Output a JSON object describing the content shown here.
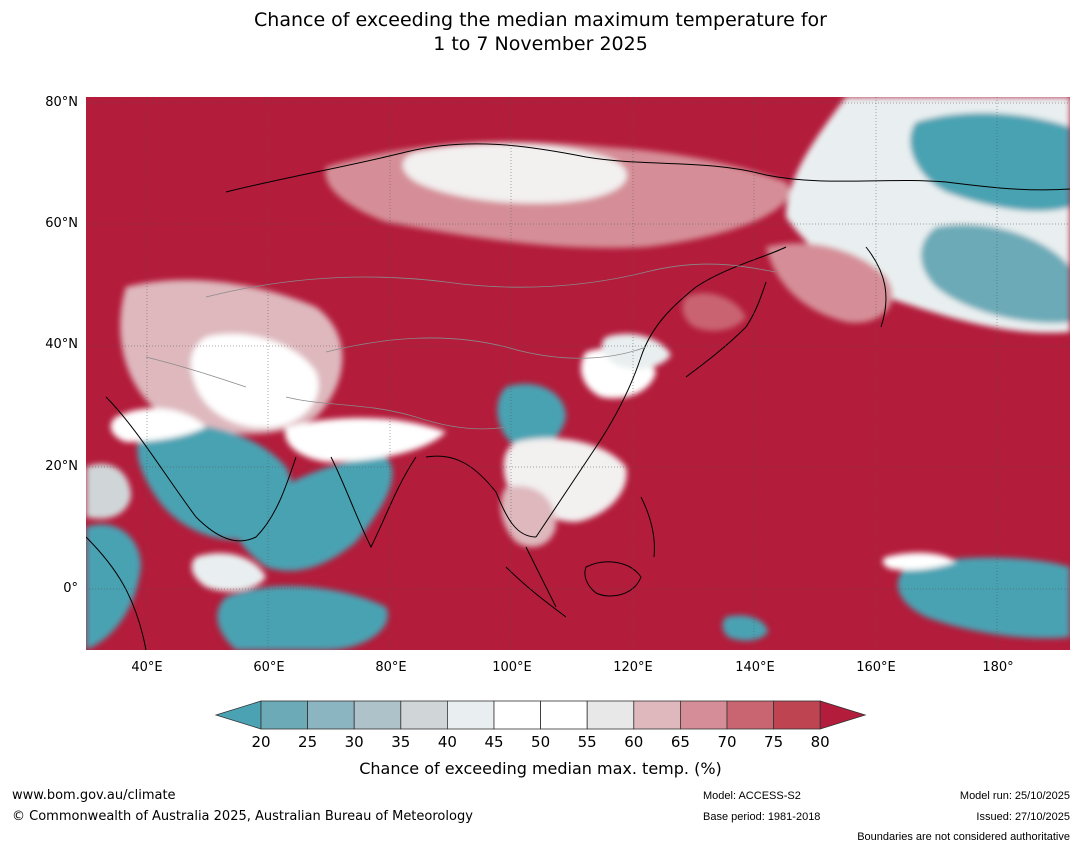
{
  "title": {
    "line1": "Chance of exceeding the median maximum temperature for",
    "line2": "1 to 7 November 2025"
  },
  "map": {
    "lat_labels": [
      "80°N",
      "60°N",
      "40°N",
      "20°N",
      "0°"
    ],
    "lon_labels": [
      "40°E",
      "60°E",
      "80°E",
      "100°E",
      "120°E",
      "140°E",
      "160°E",
      "180°"
    ],
    "extent": {
      "lon_min": 30,
      "lon_max": 192,
      "lat_min": -10,
      "lat_max": 81
    },
    "ocean_color": "#b31c3b"
  },
  "colorbar": {
    "ticks": [
      "20",
      "25",
      "30",
      "35",
      "40",
      "45",
      "50",
      "55",
      "60",
      "65",
      "70",
      "75",
      "80"
    ],
    "colors": [
      "#4aa2b2",
      "#6caab7",
      "#8bb6c1",
      "#adc3c9",
      "#d0d6d8",
      "#e9eff0",
      "#ffffff",
      "#ffffff",
      "#e8e8e8",
      "#deb8bd",
      "#d58e97",
      "#c96471",
      "#be4452",
      "#b31c3b"
    ],
    "label": "Chance of exceeding median max. temp. (%)"
  },
  "footer": {
    "website": "www.bom.gov.au/climate",
    "copyright": "© Commonwealth of Australia 2025, Australian Bureau of Meteorology",
    "model": "Model: ACCESS-S2",
    "base_period": "Base period: 1981-2018",
    "model_run": "Model run: 25/10/2025",
    "issued": "Issued: 27/10/2025",
    "disclaimer": "Boundaries are not considered authoritative"
  }
}
